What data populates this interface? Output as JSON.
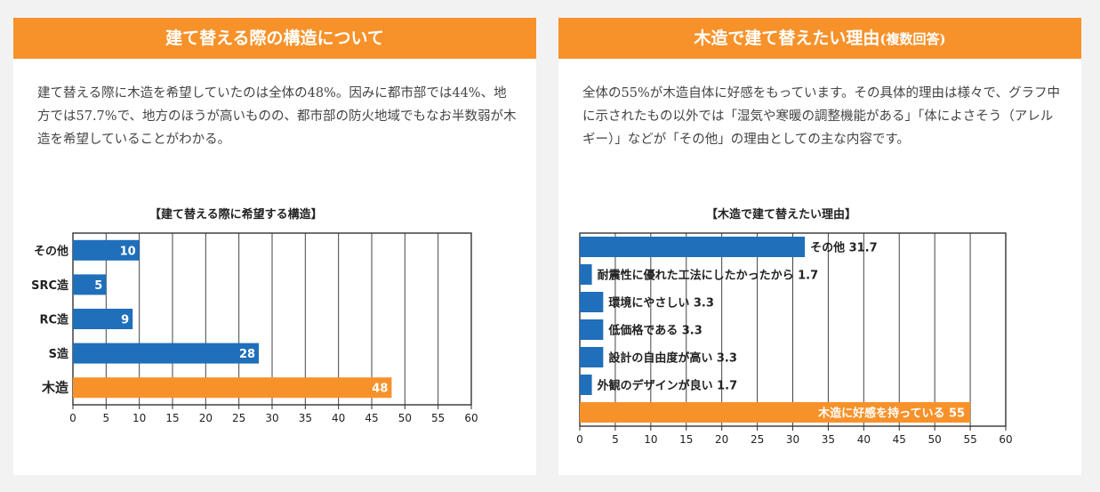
{
  "left_panel": {
    "header": "建て替える際の構造について",
    "description": "建て替える際に木造を希望していたのは全体の48%。因みに都市部では44%、地方では57.7%で、地方のほうが高いものの、都市部の防火地域でもなお半数弱が木造を希望していることがわかる。"
  },
  "right_panel": {
    "header": "木造で建て替えたい理由",
    "header_suffix": "(複数回答)",
    "description": "全体の55%が木造自体に好感をもっています。その具体的理由は様々で、グラフ中に示されたもの以外では「湿気や寒暖の調整機能がある」「体によさそう（アレルギー）」などが「その他」の理由としての主な内容です。"
  },
  "colors": {
    "accent": "#f7922a",
    "bar_blue": "#1f6fba",
    "bar_orange": "#f7922a"
  },
  "chart_data": [
    {
      "type": "bar",
      "orientation": "horizontal",
      "title": "【建て替える際に希望する構造】",
      "categories": [
        "その他",
        "SRC造",
        "RC造",
        "S造",
        "木造"
      ],
      "values": [
        10,
        5,
        9,
        28,
        48
      ],
      "highlight_category": "木造",
      "xlim": [
        0,
        60
      ],
      "xticks": [
        0,
        5,
        10,
        15,
        20,
        25,
        30,
        35,
        40,
        45,
        50,
        55,
        60
      ],
      "grid": true,
      "label_position": "inside-end"
    },
    {
      "type": "bar",
      "orientation": "horizontal",
      "title": "【木造で建て替えたい理由】",
      "categories": [
        "その他",
        "耐震性に優れた工法にしたかったから",
        "環境にやさしい",
        "低価格である",
        "設計の自由度が高い",
        "外観のデザインが良い",
        "木造に好感を持っている"
      ],
      "values": [
        31.7,
        1.7,
        3.3,
        3.3,
        3.3,
        1.7,
        55
      ],
      "highlight_category": "木造に好感を持っている",
      "xlim": [
        0,
        60
      ],
      "xticks": [
        0,
        5,
        10,
        15,
        20,
        25,
        30,
        35,
        40,
        45,
        50,
        55,
        60
      ],
      "grid": true,
      "label_position": "outside-end"
    }
  ]
}
